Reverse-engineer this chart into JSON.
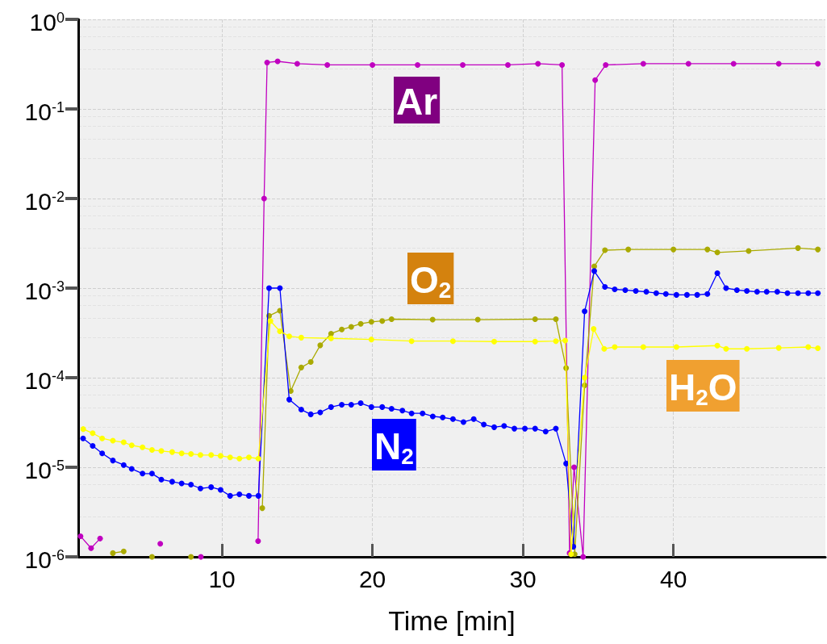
{
  "chart_data": {
    "type": "line",
    "xlabel": "Time [min]",
    "log": "y",
    "grid": true,
    "marker": "circle",
    "line_style": "solid",
    "xlim": [
      0.45,
      50.1
    ],
    "xticks": [
      10,
      20,
      30,
      40
    ],
    "ylim": [
      1e-06,
      1
    ],
    "yticks": [
      {
        "value": 1,
        "label": "10$^{0}$"
      },
      {
        "value": 0.1,
        "label": "10$^{-1}$"
      },
      {
        "value": 0.01,
        "label": "10$^{-2}$"
      },
      {
        "value": 0.001,
        "label": "10$^{-3}$"
      },
      {
        "value": 0.0001,
        "label": "10$^{-4}$"
      },
      {
        "value": 1e-05,
        "label": "10$^{-5}$"
      },
      {
        "value": 1e-06,
        "label": "10$^{-6}$"
      }
    ],
    "series": [
      {
        "name": "Ar",
        "color": "#c000c0",
        "x": [
          0.6,
          1.3,
          1.9,
          2.6,
          5.5,
          5.9,
          6.3,
          8.6,
          12.3,
          12.4,
          12.8,
          13.0,
          13.7,
          15.0,
          17.0,
          20.0,
          23.0,
          26.0,
          29.0,
          31.0,
          32.6,
          33.1,
          33.4,
          34.0,
          34.8,
          35.5,
          38.0,
          41.0,
          44.0,
          47.0,
          49.6
        ],
        "values": [
          1.7e-06,
          1.25e-06,
          1.6e-06,
          null,
          null,
          1.4e-06,
          null,
          1e-06,
          null,
          1.5e-06,
          0.01,
          0.33,
          0.34,
          0.32,
          0.31,
          0.31,
          0.31,
          0.31,
          0.31,
          0.32,
          0.31,
          1.1e-06,
          1e-05,
          1e-06,
          0.21,
          0.31,
          0.32,
          0.32,
          0.32,
          0.32,
          0.32
        ]
      },
      {
        "name": "O$_{2}$",
        "color": "#aaaa00",
        "x": [
          2.75,
          3.47,
          4.0,
          5.35,
          6.0,
          7.94,
          8.5,
          12.68,
          13.13,
          13.85,
          14.57,
          15.27,
          15.9,
          16.53,
          17.25,
          17.96,
          18.59,
          19.22,
          19.93,
          20.65,
          21.27,
          24.0,
          27.0,
          30.81,
          32.19,
          32.87,
          33.44,
          34.1,
          34.74,
          35.45,
          37.0,
          40.0,
          42.26,
          42.92,
          45.0,
          48.28,
          49.6
        ],
        "values": [
          1.1e-06,
          1.15e-06,
          null,
          1e-06,
          null,
          1e-06,
          null,
          3.5e-06,
          0.00049,
          0.00056,
          7.1e-05,
          0.00013,
          0.00015,
          0.00023,
          0.00031,
          0.000345,
          0.00037,
          0.0004,
          0.00042,
          0.00043,
          0.00045,
          0.000445,
          0.000445,
          0.00045,
          0.00045,
          0.000128,
          1.07e-06,
          8.2e-05,
          0.00175,
          0.00265,
          0.0027,
          0.0027,
          0.0027,
          0.0025,
          0.0026,
          0.0028,
          0.0027
        ]
      },
      {
        "name": "N$_{2}$",
        "color": "#0000ff",
        "x": [
          0.77,
          1.41,
          2.04,
          2.75,
          3.47,
          4.0,
          4.72,
          5.35,
          5.97,
          6.69,
          7.32,
          7.94,
          8.57,
          9.28,
          9.91,
          10.54,
          11.16,
          11.79,
          12.42,
          13.13,
          13.85,
          14.47,
          15.27,
          15.9,
          16.53,
          17.25,
          17.96,
          18.59,
          19.22,
          19.93,
          20.65,
          21.27,
          21.99,
          22.6,
          23.33,
          24.01,
          24.67,
          25.35,
          26.05,
          26.73,
          27.4,
          28.09,
          28.75,
          29.43,
          30.13,
          30.81,
          31.51,
          32.19,
          32.87,
          33.35,
          34.1,
          34.74,
          35.45,
          36.1,
          36.8,
          37.5,
          38.2,
          38.86,
          39.5,
          40.2,
          40.9,
          41.58,
          42.26,
          42.92,
          43.5,
          44.22,
          44.88,
          45.56,
          46.2,
          46.9,
          47.58,
          48.28,
          48.96,
          49.6
        ],
        "values": [
          2.1e-05,
          1.73e-05,
          1.43e-05,
          1.19e-05,
          1.06e-05,
          9.6e-06,
          8.5e-06,
          8.5e-06,
          7.3e-06,
          6.9e-06,
          6.6e-06,
          6.4e-06,
          5.8e-06,
          6e-06,
          5.6e-06,
          4.8e-06,
          5e-06,
          4.8e-06,
          4.8e-06,
          0.001,
          0.001,
          5.7e-05,
          4.4e-05,
          3.9e-05,
          4.1e-05,
          4.7e-05,
          5e-05,
          5e-05,
          5.2e-05,
          4.7e-05,
          4.7e-05,
          4.5e-05,
          4.3e-05,
          4e-05,
          4e-05,
          3.7e-05,
          3.6e-05,
          3.45e-05,
          3.2e-05,
          3.45e-05,
          3e-05,
          2.8e-05,
          2.9e-05,
          2.7e-05,
          2.7e-05,
          2.7e-05,
          2.5e-05,
          2.7e-05,
          1.1e-05,
          1.3e-06,
          0.00055,
          0.00155,
          0.00103,
          0.00097,
          0.00095,
          0.00093,
          0.00091,
          0.00088,
          0.00086,
          0.00084,
          0.00084,
          0.00084,
          0.00086,
          0.00147,
          0.001,
          0.00095,
          0.00093,
          0.00091,
          0.00091,
          0.00091,
          0.00088,
          0.00088,
          0.00088,
          0.00088
        ]
      },
      {
        "name": "H$_{2}$O",
        "color": "#ffff00",
        "x": [
          0.78,
          1.41,
          2.04,
          2.75,
          3.47,
          4.0,
          4.72,
          5.35,
          5.97,
          6.69,
          7.32,
          7.94,
          8.57,
          9.28,
          9.91,
          10.54,
          11.16,
          11.79,
          12.42,
          13.22,
          13.85,
          14.47,
          15.27,
          17.25,
          19.93,
          22.6,
          25.35,
          28.09,
          30.81,
          32.19,
          32.81,
          33.2,
          34.1,
          34.7,
          35.4,
          36.1,
          38.0,
          40.2,
          42.92,
          43.5,
          44.88,
          47.0,
          48.96,
          49.6
        ],
        "values": [
          2.67e-05,
          2.4e-05,
          2.1e-05,
          1.98e-05,
          1.9e-05,
          1.76e-05,
          1.67e-05,
          1.56e-05,
          1.52e-05,
          1.48e-05,
          1.43e-05,
          1.41e-05,
          1.37e-05,
          1.37e-05,
          1.34e-05,
          1.29e-05,
          1.25e-05,
          1.29e-05,
          1.25e-05,
          0.00043,
          0.00033,
          0.00029,
          0.00028,
          0.000275,
          0.000267,
          0.000256,
          0.000256,
          0.000253,
          0.000253,
          0.000256,
          0.00026,
          1.07e-06,
          0.0001,
          0.00035,
          0.00021,
          0.00022,
          0.00022,
          0.00022,
          0.000228,
          0.00021,
          0.00021,
          0.000215,
          0.00022,
          0.000213
        ]
      }
    ]
  }
}
